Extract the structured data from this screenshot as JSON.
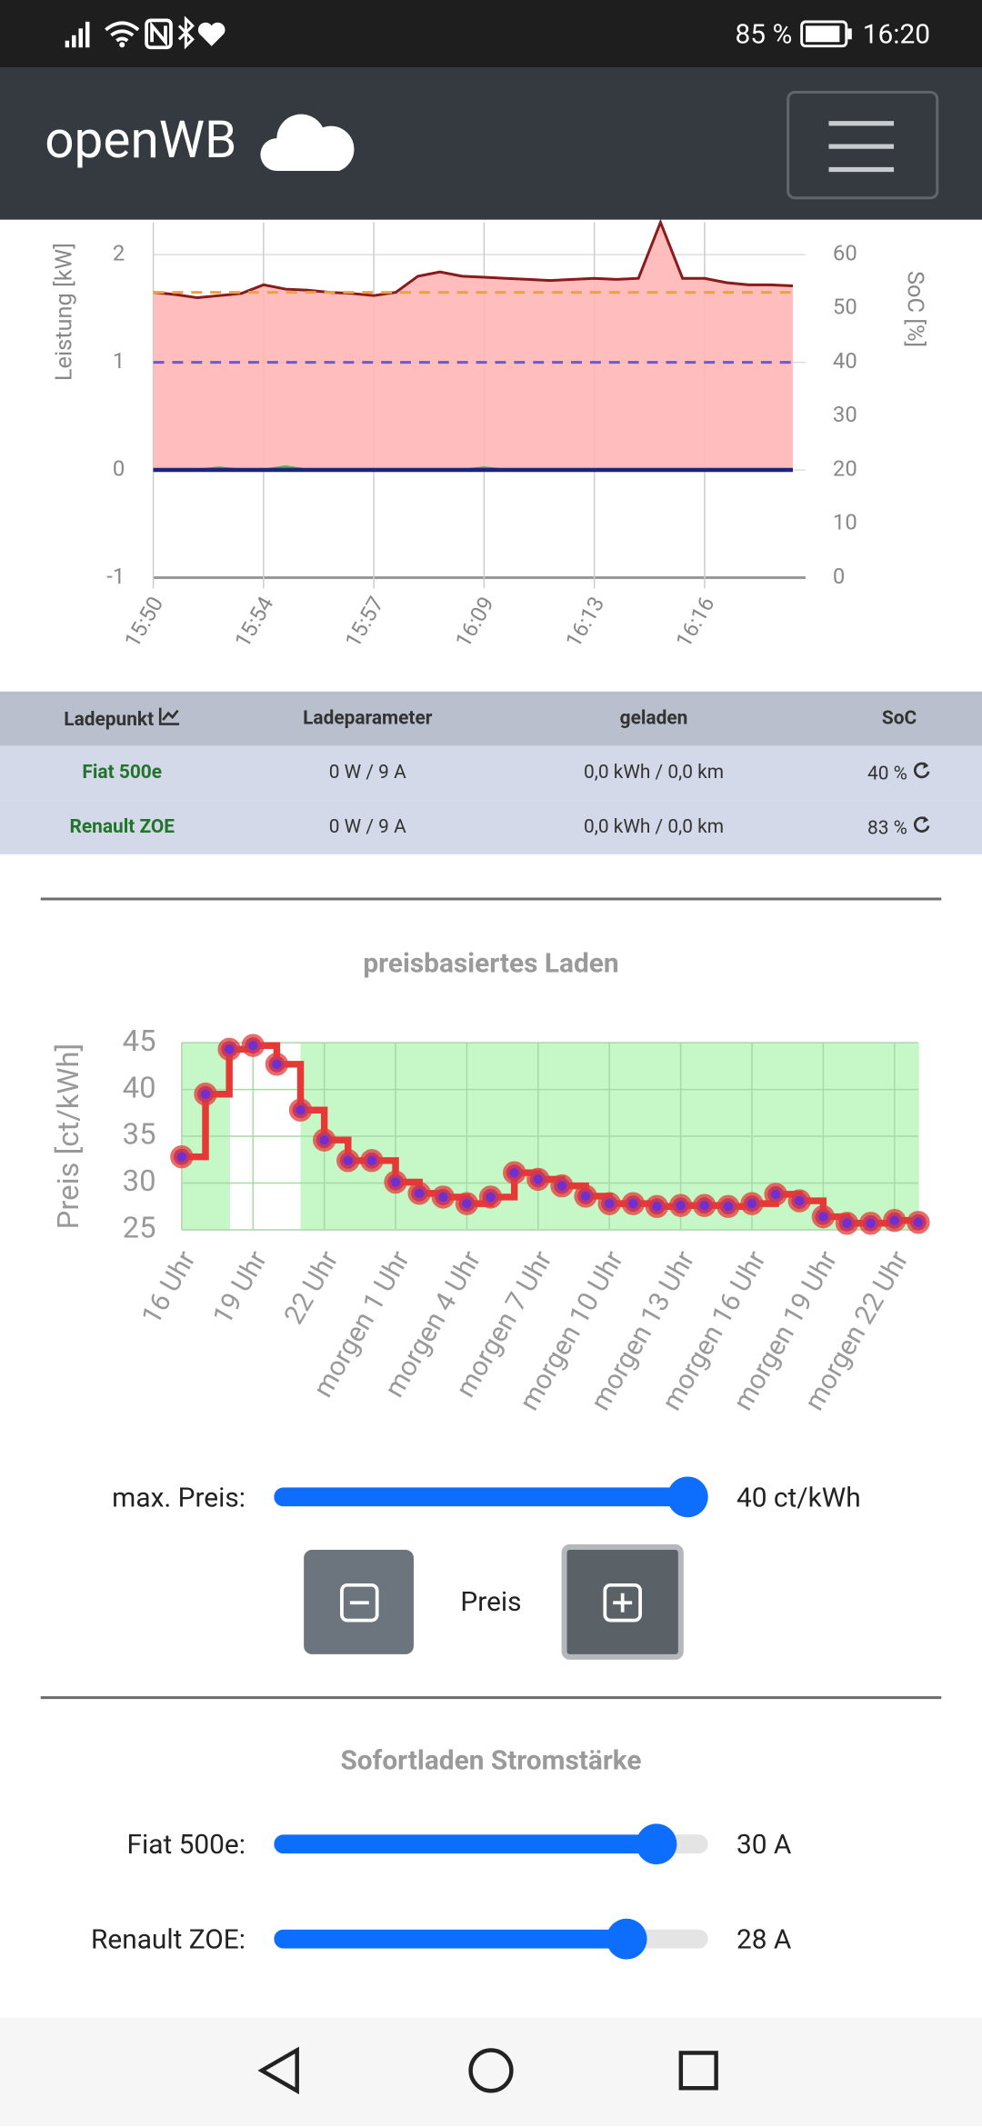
{
  "status_bar": {
    "battery": "85 %",
    "time": "16:20"
  },
  "header": {
    "title": "openWB"
  },
  "chart_data": [
    {
      "type": "line",
      "y_label": "Leistung [kW]",
      "y2_label": "SoC [%]",
      "categories": [
        "15:50",
        null,
        null,
        null,
        null,
        "15:54",
        null,
        null,
        null,
        null,
        "15:57",
        null,
        null,
        null,
        null,
        "16:09",
        null,
        null,
        null,
        null,
        "16:13",
        null,
        null,
        null,
        null,
        "16:16",
        null,
        null,
        null,
        null
      ],
      "ylim": [
        -1,
        2.3
      ],
      "yticks": [
        -1,
        0,
        1,
        2
      ],
      "y2lim": [
        0,
        66
      ],
      "y2ticks": [
        0,
        10,
        20,
        30,
        40,
        50,
        60
      ],
      "grid": true,
      "series": [
        {
          "color": "#8b1a1a",
          "fill": "#ffb6b6",
          "values": [
            1.65,
            1.63,
            1.6,
            1.62,
            1.64,
            1.72,
            1.68,
            1.67,
            1.65,
            1.64,
            1.62,
            1.65,
            1.8,
            1.84,
            1.8,
            1.79,
            1.78,
            1.77,
            1.76,
            1.77,
            1.78,
            1.77,
            1.78,
            2.3,
            1.78,
            1.78,
            1.74,
            1.72,
            1.72,
            1.71
          ]
        },
        {
          "color": "#f0a040",
          "dashed": true,
          "axis": "y2",
          "values": [
            53,
            53,
            53,
            53,
            53,
            53,
            53,
            53,
            53,
            53,
            53,
            53,
            53,
            53,
            53,
            53,
            53,
            53,
            53,
            53,
            53,
            53,
            53,
            53,
            53,
            53,
            53,
            53,
            53,
            53
          ]
        },
        {
          "color": "#6a5acd",
          "dashed": true,
          "axis": "y2",
          "values": [
            40,
            40,
            40,
            40,
            40,
            40,
            40,
            40,
            40,
            40,
            40,
            40,
            40,
            40,
            40,
            40,
            40,
            40,
            40,
            40,
            40,
            40,
            40,
            40,
            40,
            40,
            40,
            40,
            40,
            40
          ]
        },
        {
          "color": "#4caf50",
          "values": [
            0,
            0,
            0,
            0.02,
            0,
            0,
            0.03,
            0,
            0,
            0,
            0,
            0,
            0,
            0,
            0,
            0.02,
            0,
            0,
            0,
            0,
            0,
            0,
            0,
            0,
            0,
            0,
            0,
            0,
            0,
            0
          ]
        },
        {
          "color": "#1a237e",
          "values": [
            0,
            0,
            0,
            0,
            0,
            0,
            0,
            0,
            0,
            0,
            0,
            0,
            0,
            0,
            0,
            0,
            0,
            0,
            0,
            0,
            0,
            0,
            0,
            0,
            0,
            0,
            0,
            0,
            0,
            0
          ]
        }
      ]
    },
    {
      "type": "step",
      "title": "preisbasiertes Laden",
      "y_label": "Preis [ct/kWh]",
      "categories": [
        "16 Uhr",
        null,
        null,
        "19 Uhr",
        null,
        null,
        "22 Uhr",
        null,
        null,
        "morgen 1 Uhr",
        null,
        null,
        "morgen 4 Uhr",
        null,
        null,
        "morgen 7 Uhr",
        null,
        null,
        "morgen 10 Uhr",
        null,
        null,
        "morgen 13 Uhr",
        null,
        null,
        "morgen 16 Uhr",
        null,
        null,
        "morgen 19 Uhr",
        null,
        null,
        "morgen 22 Uhr",
        null
      ],
      "values": [
        32.8,
        39.5,
        44.3,
        44.7,
        42.7,
        37.8,
        34.6,
        32.4,
        32.4,
        30.1,
        28.9,
        28.5,
        27.8,
        28.5,
        31.1,
        30.4,
        29.7,
        28.6,
        27.8,
        27.8,
        27.5,
        27.6,
        27.6,
        27.5,
        27.8,
        28.8,
        28.1,
        26.4,
        25.7,
        25.7,
        26,
        25.8
      ],
      "color": "#e53935",
      "point_color": "#7030d0",
      "area_color": "#c6f7c6",
      "ylim": [
        25,
        45
      ],
      "yticks": [
        25,
        30,
        35,
        40,
        45
      ],
      "grid": true,
      "threshold": {
        "value": 40,
        "label": "40 ct/kWh"
      }
    }
  ],
  "table": {
    "headers": [
      "Ladepunkt",
      "Ladeparameter",
      "geladen",
      "SoC"
    ],
    "rows": [
      [
        "Fiat 500e",
        "0 W / 9 A",
        "0,0 kWh / 0,0 km",
        "40 %"
      ],
      [
        "Renault ZOE",
        "0 W / 9 A",
        "0,0 kWh / 0,0 km",
        "83 %"
      ]
    ]
  },
  "price_controls": {
    "label": "max. Preis:",
    "button_label": "Preis"
  },
  "instant": {
    "title": "Sofortladen Stromstärke",
    "rows": [
      {
        "label": "Fiat 500e:",
        "value": "30 A"
      },
      {
        "label": "Renault ZOE:",
        "value": "28 A"
      }
    ]
  }
}
